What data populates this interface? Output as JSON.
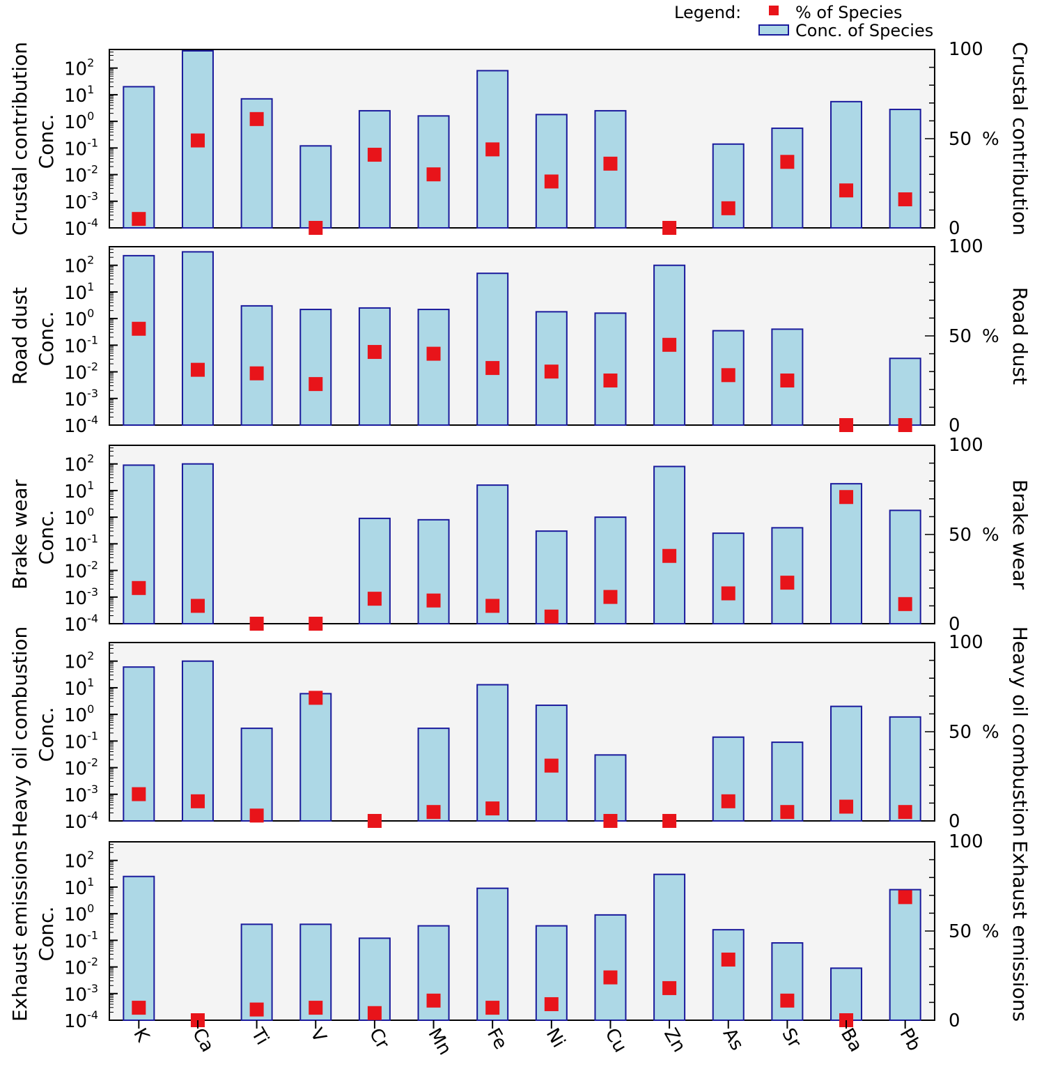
{
  "legend": {
    "title": "Legend:",
    "marker_label": "% of Species",
    "bar_label": "Conc. of Species"
  },
  "colors": {
    "bar_fill": "#add8e6",
    "bar_stroke": "#1a1a9c",
    "marker": "#e8141a",
    "plot_bg": "#f4f4f4"
  },
  "chart_data": {
    "type": "bar",
    "categories": [
      "K",
      "Ca",
      "Ti",
      "V",
      "Cr",
      "Mn",
      "Fe",
      "Ni",
      "Cu",
      "Zn",
      "As",
      "Sr",
      "Ba",
      "Pb"
    ],
    "left_axis": {
      "scale": "log",
      "ylim": [
        0.0001,
        500
      ],
      "ticks": [
        {
          "base": "10",
          "exp": "2"
        },
        {
          "base": "10",
          "exp": "1"
        },
        {
          "base": "10",
          "exp": "0"
        },
        {
          "base": "10",
          "exp": "-1"
        },
        {
          "base": "10",
          "exp": "-2"
        },
        {
          "base": "10",
          "exp": "-3"
        },
        {
          "base": "10",
          "exp": "-4"
        }
      ]
    },
    "right_axis": {
      "ylim": [
        0,
        100
      ],
      "tick_labels": [
        "100",
        "50",
        "0"
      ],
      "unit": "%"
    },
    "panels": [
      {
        "name": "Crustal contribution",
        "ylabel": "Conc.",
        "conc": [
          20,
          460,
          7,
          0.12,
          2.5,
          1.6,
          80,
          1.8,
          2.5,
          null,
          0.14,
          0.55,
          5.5,
          2.8
        ],
        "percent": [
          5,
          49,
          61,
          0,
          41,
          30,
          44,
          26,
          36,
          0,
          11,
          37,
          21,
          16
        ]
      },
      {
        "name": "Road dust",
        "ylabel": "Conc.",
        "conc": [
          230,
          320,
          3,
          2.2,
          2.5,
          2.2,
          50,
          1.8,
          1.6,
          100,
          0.35,
          0.4,
          null,
          0.032
        ],
        "percent": [
          54,
          31,
          29,
          23,
          41,
          40,
          32,
          30,
          25,
          45,
          28,
          25,
          0,
          0
        ]
      },
      {
        "name": "Brake wear",
        "ylabel": "Conc.",
        "conc": [
          90,
          100,
          null,
          null,
          0.9,
          0.8,
          16,
          0.3,
          1.0,
          80,
          0.25,
          0.4,
          18,
          1.8
        ],
        "percent": [
          20,
          10,
          0,
          0,
          14,
          13,
          10,
          4,
          15,
          38,
          17,
          23,
          71,
          11
        ]
      },
      {
        "name": "Heavy oil combustion",
        "ylabel": "Conc.",
        "conc": [
          60,
          100,
          0.3,
          6,
          null,
          0.3,
          13,
          2.2,
          0.03,
          null,
          0.14,
          0.09,
          2,
          0.8
        ],
        "percent": [
          15,
          11,
          3,
          69,
          0,
          5,
          7,
          31,
          0,
          0,
          11,
          5,
          8,
          5
        ]
      },
      {
        "name": "Exhaust emissions",
        "ylabel": "Conc.",
        "conc": [
          25,
          null,
          0.4,
          0.4,
          0.12,
          0.35,
          9,
          0.35,
          0.9,
          30,
          0.25,
          0.08,
          0.009,
          8
        ],
        "percent": [
          7,
          0,
          6,
          7,
          4,
          11,
          7,
          9,
          24,
          18,
          34,
          11,
          0,
          69
        ]
      }
    ]
  }
}
